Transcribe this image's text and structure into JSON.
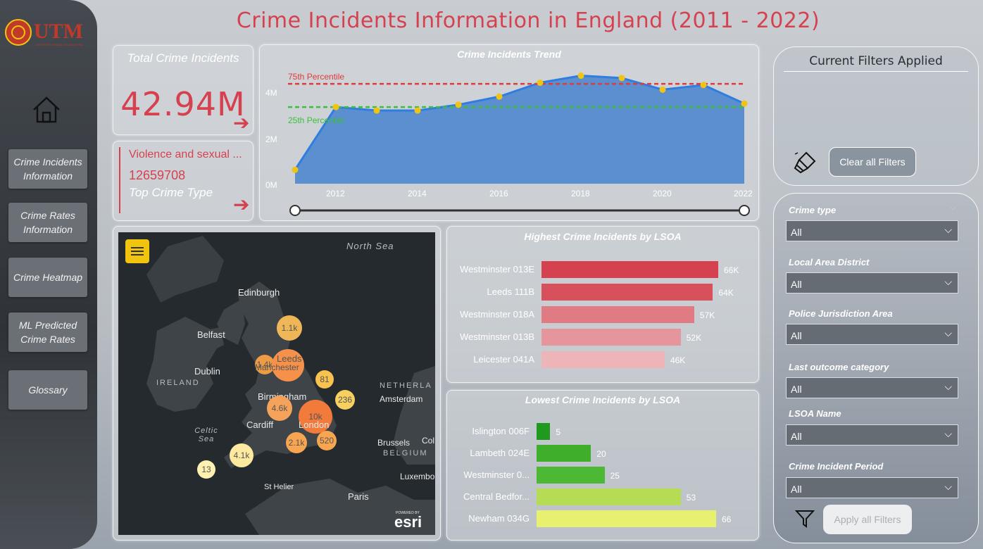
{
  "title": "Crime Incidents Information in England (2011 - 2022)",
  "logo": {
    "text": "UTM",
    "subtext": "UNIVERSITI TEKNOLOGI MALAYSIA"
  },
  "nav": [
    {
      "label": "Crime Incidents Information"
    },
    {
      "label": "Crime Rates Information"
    },
    {
      "label": "Crime Heatmap"
    },
    {
      "label": "ML Predicted Crime Rates"
    },
    {
      "label": "Glossary"
    }
  ],
  "kpi": {
    "label": "Total Crime Incidents",
    "value": "42.94M"
  },
  "top_crime": {
    "name": "Violence and sexual ...",
    "count": "12659708",
    "label": "Top Crime Type"
  },
  "trend_chart": {
    "title": "Crime Incidents Trend",
    "yticks": [
      "0M",
      "2M",
      "4M"
    ],
    "xticks": [
      "2012",
      "2014",
      "2016",
      "2018",
      "2020",
      "2022"
    ],
    "p75_label": "75th Percentile",
    "p25_label": "25th Percentile"
  },
  "map": {
    "labels": {
      "north_sea": "North Sea",
      "edinburgh": "Edinburgh",
      "belfast": "Belfast",
      "dublin": "Dublin",
      "ireland": "IRELAND",
      "leeds": "Leeds",
      "manchester": "Manchester",
      "birmingham": "Birmingham",
      "cardiff": "Cardiff",
      "london": "London",
      "netherlands": "NETHERLA",
      "amsterdam": "Amsterdam",
      "celtic_sea": "Celtic Sea",
      "brussels": "Brussels",
      "belgium": "BELGIUM",
      "col": "Col",
      "luxembourg": "Luxembo",
      "st_helier": "St Helier",
      "paris": "Paris",
      "esri": "esri",
      "esri_powered": "POWERED BY"
    },
    "clusters": [
      "1.1k",
      "1.4k",
      "81",
      "236",
      "4.6k",
      "10k",
      "2.1k",
      "520",
      "4.1k",
      "13"
    ]
  },
  "highest": {
    "title": "Highest Crime Incidents by LSOA",
    "rows": [
      {
        "label": "Westminster 013E",
        "value": 66,
        "display": "66K",
        "color": "#d6414f"
      },
      {
        "label": "Leeds 111B",
        "value": 64,
        "display": "64K",
        "color": "#d9505d"
      },
      {
        "label": "Westminster 018A",
        "value": 57,
        "display": "57K",
        "color": "#e07a83"
      },
      {
        "label": "Westminster 013B",
        "value": 52,
        "display": "52K",
        "color": "#e6959c"
      },
      {
        "label": "Leicester 041A",
        "value": 46,
        "display": "46K",
        "color": "#eeb5b9"
      }
    ]
  },
  "lowest": {
    "title": "Lowest Crime Incidents by LSOA",
    "rows": [
      {
        "label": "Islington 006F",
        "value": 5,
        "display": "5",
        "color": "#1f9a1f"
      },
      {
        "label": "Lambeth 024E",
        "value": 20,
        "display": "20",
        "color": "#3fae2a"
      },
      {
        "label": "Westminster 0...",
        "value": 25,
        "display": "25",
        "color": "#4db834"
      },
      {
        "label": "Central Bedfor...",
        "value": 53,
        "display": "53",
        "color": "#b6dc55"
      },
      {
        "label": "Newham 034G",
        "value": 66,
        "display": "66",
        "color": "#e8f070"
      }
    ]
  },
  "filters": {
    "title": "Current Filters Applied",
    "clear_label": "Clear all Filters",
    "apply_label": "Apply all Filters"
  },
  "slicers": [
    {
      "label": "Crime type",
      "value": "All"
    },
    {
      "label": "Local Area District",
      "value": "All"
    },
    {
      "label": "Police Jurisdiction Area",
      "value": "All"
    },
    {
      "label": "Last outcome category",
      "value": "All"
    },
    {
      "label": "LSOA Name",
      "value": "All"
    },
    {
      "label": "Crime Incident Period",
      "value": "All"
    }
  ],
  "chart_data": [
    {
      "type": "area",
      "title": "Crime Incidents Trend",
      "x": [
        2011,
        2012,
        2013,
        2014,
        2015,
        2016,
        2017,
        2018,
        2019,
        2020,
        2021,
        2022
      ],
      "y": [
        0.6,
        3.3,
        3.15,
        3.15,
        3.4,
        3.75,
        4.35,
        4.65,
        4.55,
        4.05,
        4.25,
        3.45
      ],
      "yunit": "M",
      "ylim": [
        0,
        5
      ],
      "reference_lines": [
        {
          "name": "75th Percentile",
          "value": 4.3,
          "color": "#e03a3a"
        },
        {
          "name": "25th Percentile",
          "value": 3.3,
          "color": "#3cbf3c"
        }
      ]
    },
    {
      "type": "bar",
      "title": "Highest Crime Incidents by LSOA",
      "categories": [
        "Westminster 013E",
        "Leeds 111B",
        "Westminster 018A",
        "Westminster 013B",
        "Leicester 041A"
      ],
      "values": [
        66,
        64,
        57,
        52,
        46
      ],
      "unit": "K"
    },
    {
      "type": "bar",
      "title": "Lowest Crime Incidents by LSOA",
      "categories": [
        "Islington 006F",
        "Lambeth 024E",
        "Westminster 0...",
        "Central Bedfor...",
        "Newham 034G"
      ],
      "values": [
        5,
        20,
        25,
        53,
        66
      ]
    }
  ]
}
